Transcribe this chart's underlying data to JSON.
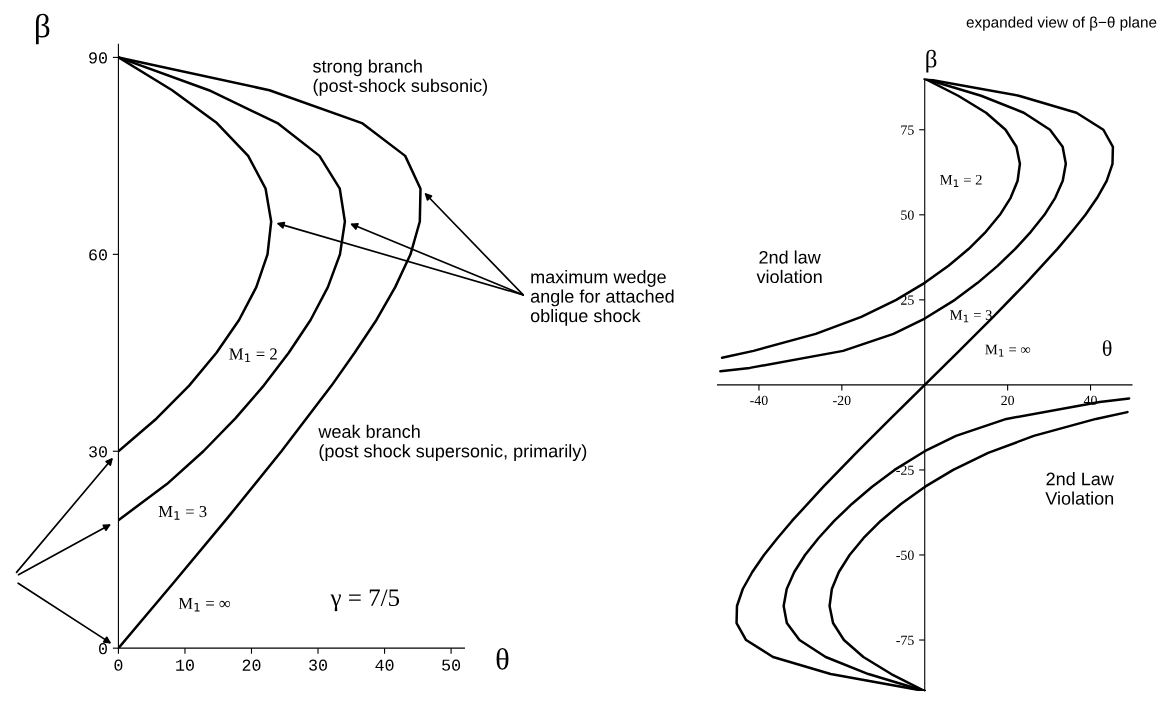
{
  "chart_data": [
    {
      "type": "line",
      "xlabel": "θ",
      "ylabel": "β",
      "xlim": [
        0,
        52
      ],
      "ylim": [
        0,
        92
      ],
      "xticks": [
        0,
        10,
        20,
        30,
        40,
        50
      ],
      "yticks": [
        0,
        30,
        60,
        90
      ],
      "grid": false,
      "legend": false,
      "marker": "none",
      "line_style": "solid",
      "annotations": [
        "strong branch\n(post-shock subsonic)",
        "weak branch\n(post shock supersonic, primarily)",
        "γ = 7/5",
        "maximum wedge\nangle for attached\noblique shock"
      ],
      "series": [
        {
          "name": "M$_{1}$ = 2",
          "color": "#000000",
          "x": [
            0,
            5.74,
            10.63,
            14.74,
            18.13,
            20.72,
            22.41,
            22.96,
            22.12,
            19.5,
            14.8,
            8.08,
            0
          ],
          "values": [
            30,
            35,
            40,
            45,
            50,
            55,
            60,
            65,
            70,
            75,
            80,
            85,
            90
          ]
        },
        {
          "name": "M$_{1}$ = 3",
          "color": "#000000",
          "x": [
            0,
            7.28,
            12.77,
            17.58,
            21.84,
            25.6,
            28.88,
            31.48,
            33.3,
            34.04,
            33.27,
            30.22,
            23.9,
            13.6,
            0
          ],
          "values": [
            19.5,
            25,
            30,
            35,
            40,
            45,
            50,
            55,
            60,
            65,
            70,
            75,
            80,
            85,
            90
          ]
        },
        {
          "name": "M$_{1}$ = ∞",
          "color": "#000000",
          "x": [
            0,
            8.32,
            16.53,
            24.5,
            32.03,
            35.5,
            38.78,
            41.6,
            43.9,
            45.3,
            45.4,
            43.1,
            36.6,
            22.7,
            0
          ],
          "values": [
            0,
            10,
            20,
            30,
            40,
            45,
            50,
            55,
            60,
            65,
            70,
            75,
            80,
            85,
            90
          ]
        }
      ]
    },
    {
      "type": "line",
      "title": "expanded view of β−θ plane",
      "xlabel": "θ",
      "ylabel": "β",
      "xlim": [
        -50,
        50
      ],
      "ylim": [
        -90,
        90
      ],
      "xticks": [
        -40,
        -20,
        20,
        40
      ],
      "yticks": [
        -75,
        -50,
        -25,
        25,
        50,
        75
      ],
      "grid": false,
      "legend": false,
      "marker": "none",
      "line_style": "solid",
      "annotations": [
        "2nd law\nviolation",
        "2nd Law\nViolation"
      ],
      "series": [
        {
          "name": "M$_{1}$ = 2",
          "color": "#000000",
          "x": [
            -48.9,
            -41.3,
            -26.3,
            -15.3,
            -6.87,
            0,
            5.74,
            10.63,
            14.74,
            18.13,
            20.72,
            22.41,
            22.96,
            22.12,
            19.5,
            14.8,
            8.08,
            0
          ],
          "values": [
            8,
            10,
            15,
            20,
            25,
            30,
            35,
            40,
            45,
            50,
            55,
            60,
            65,
            70,
            75,
            80,
            85,
            90
          ]
        },
        {
          "color": "#000000",
          "x": [
            0,
            -8.08,
            -14.8,
            -19.5,
            -22.12,
            -22.96,
            -22.41,
            -20.72,
            -18.13,
            -14.74,
            -10.63,
            -5.74,
            0,
            6.87,
            15.3,
            26.3,
            41.3,
            48.9
          ],
          "values": [
            -90,
            -85,
            -80,
            -75,
            -70,
            -65,
            -60,
            -55,
            -50,
            -45,
            -40,
            -35,
            -30,
            -25,
            -20,
            -15,
            -10,
            -8
          ]
        },
        {
          "name": "M$_{1}$ = 3",
          "color": "#000000",
          "x": [
            -49.3,
            -42.2,
            -19.7,
            -7.54,
            0,
            7.28,
            12.77,
            17.58,
            21.84,
            25.6,
            28.88,
            31.48,
            33.3,
            34.04,
            33.27,
            30.22,
            23.9,
            13.6,
            0
          ],
          "values": [
            4,
            5,
            10,
            15,
            19.5,
            25,
            30,
            35,
            40,
            45,
            50,
            55,
            60,
            65,
            70,
            75,
            80,
            85,
            90
          ]
        },
        {
          "color": "#000000",
          "x": [
            0,
            -13.6,
            -23.9,
            -30.22,
            -33.27,
            -34.04,
            -33.3,
            -31.48,
            -28.88,
            -25.6,
            -21.84,
            -17.58,
            -12.77,
            -7.28,
            0,
            7.54,
            19.7,
            42.2,
            49.3
          ],
          "values": [
            -90,
            -85,
            -80,
            -75,
            -70,
            -65,
            -60,
            -55,
            -50,
            -45,
            -40,
            -35,
            -30,
            -25,
            -19.5,
            -15,
            -10,
            -5,
            -4
          ]
        },
        {
          "name": "M$_{1}$ = ∞",
          "color": "#000000",
          "x": [
            0,
            -22.7,
            -36.6,
            -43.1,
            -45.4,
            -45.3,
            -43.9,
            -41.6,
            -38.78,
            -35.5,
            -32.03,
            -24.5,
            -16.53,
            -8.32,
            0,
            8.32,
            16.53,
            24.5,
            32.03,
            35.5,
            38.78,
            41.6,
            43.9,
            45.3,
            45.4,
            43.1,
            36.6,
            22.7,
            0
          ],
          "values": [
            -90,
            -85,
            -80,
            -75,
            -70,
            -65,
            -60,
            -55,
            -50,
            -45,
            -40,
            -30,
            -20,
            -10,
            0,
            10,
            20,
            30,
            40,
            45,
            50,
            55,
            60,
            65,
            70,
            75,
            80,
            85,
            90
          ]
        }
      ]
    }
  ]
}
